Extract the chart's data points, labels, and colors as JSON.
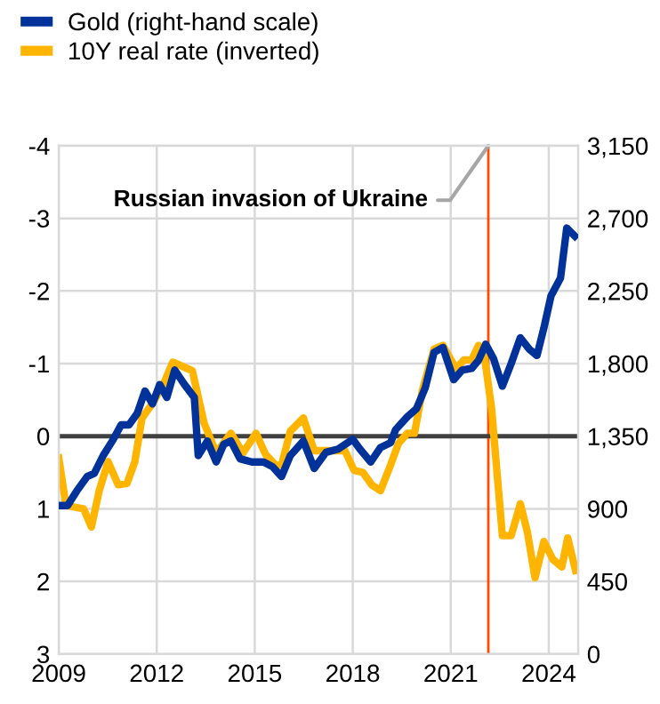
{
  "chart_data": {
    "type": "line",
    "xlim": [
      2009,
      2024.9
    ],
    "xticks": [
      2009,
      2012,
      2015,
      2018,
      2021,
      2024
    ],
    "ylim": [
      3,
      -4
    ],
    "yticks": [
      -4,
      -3,
      -2,
      -1,
      0,
      1,
      2,
      3
    ],
    "y2lim": [
      0,
      3150
    ],
    "y2ticks": [
      {
        "value": 0,
        "label": "0"
      },
      {
        "value": 450,
        "label": "450"
      },
      {
        "value": 900,
        "label": "900"
      },
      {
        "value": 1350,
        "label": "1,350"
      },
      {
        "value": 1800,
        "label": "1,800"
      },
      {
        "value": 2250,
        "label": "2,250"
      },
      {
        "value": 2700,
        "label": "2,700"
      },
      {
        "value": 3150,
        "label": "3,150"
      }
    ],
    "grid": true,
    "legend": "top left",
    "marker": "none",
    "line_style": "solid",
    "ref_lines": [
      {
        "axis": "y",
        "value": 0,
        "color": "#404040"
      },
      {
        "axis": "x",
        "value": 2022.15,
        "label": "Russian invasion of Ukraine",
        "color": "#ff4b00"
      }
    ],
    "series": [
      {
        "name": "Gold (right-hand scale)",
        "color": "#003299",
        "axis": "y2",
        "x": [
          2009.0,
          2009.27,
          2009.55,
          2009.87,
          2010.09,
          2010.36,
          2010.64,
          2010.91,
          2011.15,
          2011.4,
          2011.64,
          2011.87,
          2012.09,
          2012.31,
          2012.55,
          2012.85,
          2013.15,
          2013.27,
          2013.55,
          2013.82,
          2014.05,
          2014.27,
          2014.55,
          2014.91,
          2015.27,
          2015.55,
          2015.82,
          2016.09,
          2016.49,
          2016.82,
          2017.18,
          2017.55,
          2018.0,
          2018.22,
          2018.55,
          2018.85,
          2019.16,
          2019.31,
          2019.67,
          2019.95,
          2020.22,
          2020.49,
          2020.76,
          2021.09,
          2021.35,
          2021.64,
          2021.85,
          2022.07,
          2022.31,
          2022.58,
          2022.85,
          2023.13,
          2023.4,
          2023.64,
          2023.85,
          2024.07,
          2024.36,
          2024.55,
          2024.8
        ],
        "values": [
          920,
          920,
          1010,
          1100,
          1120,
          1230,
          1320,
          1420,
          1420,
          1490,
          1630,
          1550,
          1670,
          1590,
          1760,
          1670,
          1590,
          1230,
          1320,
          1190,
          1300,
          1320,
          1210,
          1190,
          1190,
          1160,
          1100,
          1230,
          1320,
          1150,
          1250,
          1270,
          1330,
          1270,
          1190,
          1280,
          1310,
          1390,
          1470,
          1520,
          1650,
          1870,
          1900,
          1700,
          1760,
          1770,
          1820,
          1920,
          1830,
          1660,
          1800,
          1960,
          1890,
          1850,
          2020,
          2220,
          2330,
          2640,
          2590
        ]
      },
      {
        "name": "10Y real rate (inverted)",
        "color": "#ffb400",
        "x": [
          2009.0,
          2009.22,
          2009.51,
          2009.76,
          2010.0,
          2010.24,
          2010.51,
          2010.82,
          2011.09,
          2011.33,
          2011.55,
          2011.87,
          2012.24,
          2012.49,
          2013.09,
          2013.45,
          2013.82,
          2014.27,
          2014.64,
          2015.04,
          2015.33,
          2015.64,
          2015.82,
          2016.09,
          2016.49,
          2016.82,
          2017.3,
          2017.76,
          2018.04,
          2018.31,
          2018.58,
          2018.85,
          2019.13,
          2019.4,
          2019.67,
          2019.89,
          2020.13,
          2020.49,
          2020.76,
          2021.16,
          2021.4,
          2021.64,
          2021.85,
          2022.04,
          2022.25,
          2022.58,
          2022.85,
          2023.13,
          2023.35,
          2023.58,
          2023.85,
          2024.13,
          2024.4,
          2024.58,
          2024.82
        ],
        "values": [
          0.3,
          0.95,
          0.98,
          1.0,
          1.25,
          0.75,
          0.35,
          0.67,
          0.65,
          0.35,
          -0.25,
          -0.45,
          -0.75,
          -1.02,
          -0.9,
          -0.18,
          0.23,
          -0.04,
          0.23,
          -0.04,
          0.25,
          0.4,
          0.4,
          -0.07,
          -0.25,
          0.2,
          0.2,
          0.2,
          0.47,
          0.5,
          0.67,
          0.75,
          0.43,
          0.1,
          -0.04,
          -0.04,
          -0.63,
          -1.2,
          -1.25,
          -0.93,
          -1.05,
          -1.05,
          -1.25,
          -1.07,
          -0.38,
          1.37,
          1.37,
          0.93,
          1.33,
          1.95,
          1.45,
          1.7,
          1.8,
          1.4,
          1.85
        ]
      }
    ]
  }
}
